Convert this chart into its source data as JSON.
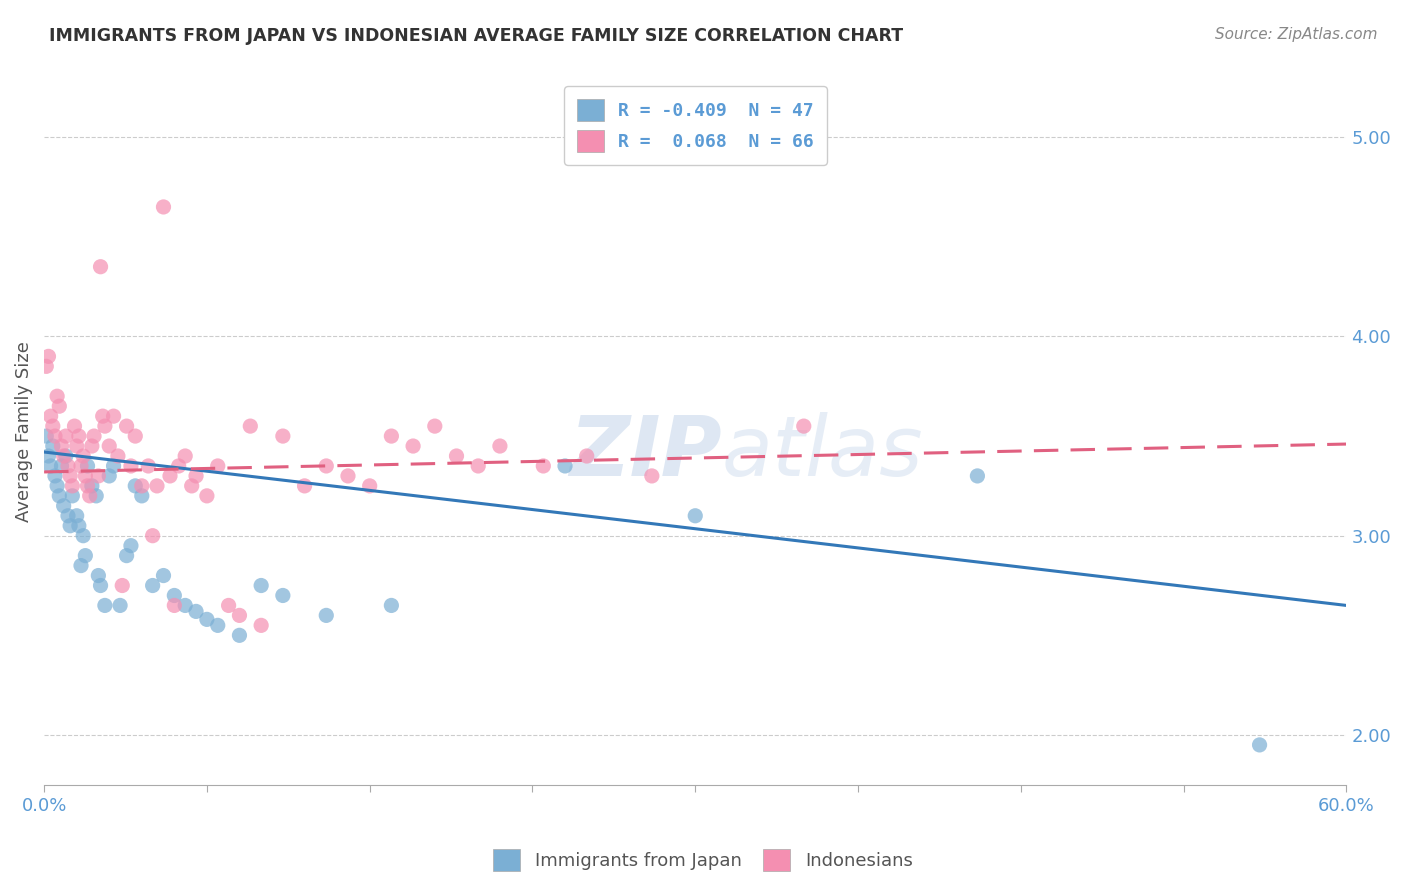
{
  "title": "IMMIGRANTS FROM JAPAN VS INDONESIAN AVERAGE FAMILY SIZE CORRELATION CHART",
  "source": "Source: ZipAtlas.com",
  "ylabel": "Average Family Size",
  "yticks": [
    2.0,
    3.0,
    4.0,
    5.0
  ],
  "xlim": [
    0.0,
    0.6
  ],
  "ylim": [
    1.75,
    5.3
  ],
  "watermark": "ZIPatlas",
  "legend_items": [
    {
      "label": "R = -0.409  N = 47",
      "color": "#aac4e8"
    },
    {
      "label": "R =  0.068  N = 66",
      "color": "#f4b8c8"
    }
  ],
  "legend_label1": "Immigrants from Japan",
  "legend_label2": "Indonesians",
  "japan_color": "#7bafd4",
  "indonesia_color": "#f48fb1",
  "japan_scatter": [
    [
      0.001,
      3.5
    ],
    [
      0.002,
      3.4
    ],
    [
      0.003,
      3.35
    ],
    [
      0.004,
      3.45
    ],
    [
      0.005,
      3.3
    ],
    [
      0.006,
      3.25
    ],
    [
      0.007,
      3.2
    ],
    [
      0.008,
      3.35
    ],
    [
      0.009,
      3.15
    ],
    [
      0.01,
      3.4
    ],
    [
      0.011,
      3.1
    ],
    [
      0.012,
      3.05
    ],
    [
      0.013,
      3.2
    ],
    [
      0.015,
      3.1
    ],
    [
      0.016,
      3.05
    ],
    [
      0.017,
      2.85
    ],
    [
      0.018,
      3.0
    ],
    [
      0.019,
      2.9
    ],
    [
      0.02,
      3.35
    ],
    [
      0.022,
      3.25
    ],
    [
      0.024,
      3.2
    ],
    [
      0.025,
      2.8
    ],
    [
      0.026,
      2.75
    ],
    [
      0.028,
      2.65
    ],
    [
      0.03,
      3.3
    ],
    [
      0.032,
      3.35
    ],
    [
      0.035,
      2.65
    ],
    [
      0.038,
      2.9
    ],
    [
      0.04,
      2.95
    ],
    [
      0.042,
      3.25
    ],
    [
      0.045,
      3.2
    ],
    [
      0.05,
      2.75
    ],
    [
      0.055,
      2.8
    ],
    [
      0.06,
      2.7
    ],
    [
      0.065,
      2.65
    ],
    [
      0.07,
      2.62
    ],
    [
      0.075,
      2.58
    ],
    [
      0.08,
      2.55
    ],
    [
      0.09,
      2.5
    ],
    [
      0.1,
      2.75
    ],
    [
      0.11,
      2.7
    ],
    [
      0.13,
      2.6
    ],
    [
      0.16,
      2.65
    ],
    [
      0.24,
      3.35
    ],
    [
      0.3,
      3.1
    ],
    [
      0.43,
      3.3
    ],
    [
      0.56,
      1.95
    ]
  ],
  "indonesia_scatter": [
    [
      0.001,
      3.85
    ],
    [
      0.002,
      3.9
    ],
    [
      0.003,
      3.6
    ],
    [
      0.004,
      3.55
    ],
    [
      0.005,
      3.5
    ],
    [
      0.006,
      3.7
    ],
    [
      0.007,
      3.65
    ],
    [
      0.008,
      3.45
    ],
    [
      0.009,
      3.4
    ],
    [
      0.01,
      3.5
    ],
    [
      0.011,
      3.35
    ],
    [
      0.012,
      3.3
    ],
    [
      0.013,
      3.25
    ],
    [
      0.014,
      3.55
    ],
    [
      0.015,
      3.45
    ],
    [
      0.016,
      3.5
    ],
    [
      0.017,
      3.35
    ],
    [
      0.018,
      3.4
    ],
    [
      0.019,
      3.3
    ],
    [
      0.02,
      3.25
    ],
    [
      0.021,
      3.2
    ],
    [
      0.022,
      3.45
    ],
    [
      0.023,
      3.5
    ],
    [
      0.025,
      3.3
    ],
    [
      0.026,
      4.35
    ],
    [
      0.027,
      3.6
    ],
    [
      0.028,
      3.55
    ],
    [
      0.03,
      3.45
    ],
    [
      0.032,
      3.6
    ],
    [
      0.034,
      3.4
    ],
    [
      0.036,
      2.75
    ],
    [
      0.038,
      3.55
    ],
    [
      0.04,
      3.35
    ],
    [
      0.042,
      3.5
    ],
    [
      0.045,
      3.25
    ],
    [
      0.048,
      3.35
    ],
    [
      0.05,
      3.0
    ],
    [
      0.052,
      3.25
    ],
    [
      0.055,
      4.65
    ],
    [
      0.058,
      3.3
    ],
    [
      0.06,
      2.65
    ],
    [
      0.062,
      3.35
    ],
    [
      0.065,
      3.4
    ],
    [
      0.068,
      3.25
    ],
    [
      0.07,
      3.3
    ],
    [
      0.075,
      3.2
    ],
    [
      0.08,
      3.35
    ],
    [
      0.085,
      2.65
    ],
    [
      0.09,
      2.6
    ],
    [
      0.095,
      3.55
    ],
    [
      0.1,
      2.55
    ],
    [
      0.11,
      3.5
    ],
    [
      0.12,
      3.25
    ],
    [
      0.13,
      3.35
    ],
    [
      0.14,
      3.3
    ],
    [
      0.15,
      3.25
    ],
    [
      0.16,
      3.5
    ],
    [
      0.17,
      3.45
    ],
    [
      0.18,
      3.55
    ],
    [
      0.19,
      3.4
    ],
    [
      0.2,
      3.35
    ],
    [
      0.21,
      3.45
    ],
    [
      0.23,
      3.35
    ],
    [
      0.25,
      3.4
    ],
    [
      0.28,
      3.3
    ],
    [
      0.35,
      3.55
    ]
  ],
  "japan_trend_x": [
    0.0,
    0.6
  ],
  "japan_trend_y": [
    3.42,
    2.65
  ],
  "indonesia_trend_x": [
    0.0,
    0.6
  ],
  "indonesia_trend_y": [
    3.32,
    3.46
  ],
  "background_color": "#ffffff",
  "grid_color": "#cccccc",
  "title_color": "#333333",
  "axis_color": "#5b9bd5",
  "tick_label_color": "#5b9bd5"
}
